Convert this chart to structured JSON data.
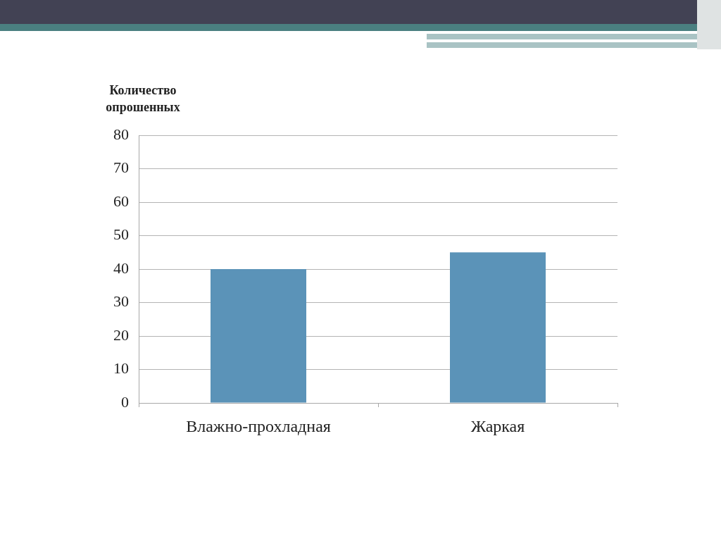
{
  "chart_data": {
    "type": "bar",
    "ylabel": "Количество опрошенных",
    "categories": [
      "Влажно-прохладная",
      "Жаркая"
    ],
    "values": [
      40,
      45
    ],
    "color": "#5b93b8",
    "ylim": [
      0,
      80
    ],
    "yticks": [
      0,
      10,
      20,
      30,
      40,
      50,
      60,
      70,
      80
    ],
    "grid": "y"
  }
}
